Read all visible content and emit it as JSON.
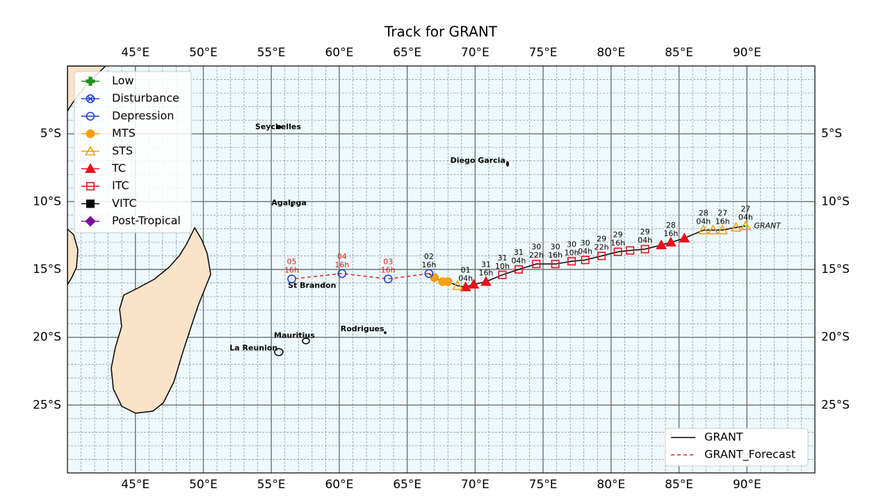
{
  "map": {
    "title": "Track for GRANT",
    "xlim": [
      40,
      95
    ],
    "ylim": [
      -30,
      0
    ],
    "xticks": [
      {
        "value": 45,
        "label": "45°E"
      },
      {
        "value": 50,
        "label": "50°E"
      },
      {
        "value": 55,
        "label": "55°E"
      },
      {
        "value": 60,
        "label": "60°E"
      },
      {
        "value": 65,
        "label": "65°E"
      },
      {
        "value": 70,
        "label": "70°E"
      },
      {
        "value": 75,
        "label": "75°E"
      },
      {
        "value": 80,
        "label": "80°E"
      },
      {
        "value": 85,
        "label": "85°E"
      },
      {
        "value": 90,
        "label": "90°E"
      }
    ],
    "yticks": [
      {
        "value": -5,
        "label": "5°S"
      },
      {
        "value": -10,
        "label": "10°S"
      },
      {
        "value": -15,
        "label": "15°S"
      },
      {
        "value": -20,
        "label": "20°S"
      },
      {
        "value": -25,
        "label": "25°S"
      }
    ],
    "xminor": [
      41,
      42,
      43,
      44,
      46,
      47,
      48,
      49,
      51,
      52,
      53,
      54,
      56,
      57,
      58,
      59,
      61,
      62,
      63,
      64,
      66,
      67,
      68,
      69,
      71,
      72,
      73,
      74,
      76,
      77,
      78,
      79,
      81,
      82,
      83,
      84,
      86,
      87,
      88,
      89,
      91,
      92,
      93,
      94
    ],
    "yminor": [
      -1,
      -2,
      -3,
      -4,
      -6,
      -7,
      -8,
      -9,
      -11,
      -12,
      -13,
      -14,
      -16,
      -17,
      -18,
      -19,
      -21,
      -22,
      -23,
      -24,
      -26,
      -27,
      -28,
      -29
    ],
    "category_legend": [
      {
        "name": "Low",
        "marker": "plus",
        "filled": true,
        "color": "#228b22"
      },
      {
        "name": "Disturbance",
        "marker": "xcircle",
        "filled": false,
        "color": "#1f3fd0"
      },
      {
        "name": "Depression",
        "marker": "circle",
        "filled": false,
        "color": "#1f3fd0"
      },
      {
        "name": "MTS",
        "marker": "circle",
        "filled": true,
        "color": "#f5a00f"
      },
      {
        "name": "STS",
        "marker": "triangle",
        "filled": false,
        "color": "#f5a00f"
      },
      {
        "name": "TC",
        "marker": "triangle",
        "filled": true,
        "color": "#e8101a"
      },
      {
        "name": "ITC",
        "marker": "square",
        "filled": false,
        "color": "#e8101a"
      },
      {
        "name": "VITC",
        "marker": "square",
        "filled": true,
        "color": "#000000"
      },
      {
        "name": "Post-Tropical",
        "marker": "diamond",
        "filled": true,
        "color": "#7d0a9a"
      }
    ],
    "places": [
      {
        "name": "Seychelles",
        "lon": 55.5,
        "lat": -4.5
      },
      {
        "name": "Diego Garcia",
        "lon": 70.2,
        "lat": -7.0
      },
      {
        "name": "Agalega",
        "lon": 56.3,
        "lat": -10.1
      },
      {
        "name": "St Brandon",
        "lon": 58.0,
        "lat": -16.2
      },
      {
        "name": "Mauritius",
        "lon": 56.7,
        "lat": -19.9
      },
      {
        "name": "Rodrigues",
        "lon": 61.7,
        "lat": -19.4
      },
      {
        "name": "La Reunion",
        "lon": 53.7,
        "lat": -20.8
      }
    ],
    "track_name": "GRANT",
    "series": [
      {
        "name": "GRANT",
        "color": "#000000",
        "dashed": false,
        "points": [
          {
            "lon": 89.9,
            "lat": -11.8,
            "cat": 4
          },
          {
            "lon": 89.2,
            "lat": -11.9,
            "cat": 4
          },
          {
            "lon": 88.2,
            "lat": -12.1,
            "cat": 4
          },
          {
            "lon": 87.5,
            "lat": -12.1,
            "cat": 4
          },
          {
            "lon": 86.8,
            "lat": -12.1,
            "cat": 4
          },
          {
            "lon": 85.4,
            "lat": -12.7,
            "cat": 5
          },
          {
            "lon": 84.4,
            "lat": -13.0,
            "cat": 5
          },
          {
            "lon": 83.7,
            "lat": -13.2,
            "cat": 5
          },
          {
            "lon": 82.5,
            "lat": -13.5,
            "cat": 6
          },
          {
            "lon": 81.4,
            "lat": -13.6,
            "cat": 6
          },
          {
            "lon": 80.5,
            "lat": -13.7,
            "cat": 6
          },
          {
            "lon": 79.3,
            "lat": -14.0,
            "cat": 6
          },
          {
            "lon": 78.1,
            "lat": -14.3,
            "cat": 6
          },
          {
            "lon": 77.1,
            "lat": -14.4,
            "cat": 6
          },
          {
            "lon": 75.9,
            "lat": -14.6,
            "cat": 6
          },
          {
            "lon": 74.5,
            "lat": -14.6,
            "cat": 6
          },
          {
            "lon": 73.2,
            "lat": -15.0,
            "cat": 6
          },
          {
            "lon": 72.0,
            "lat": -15.4,
            "cat": 6
          },
          {
            "lon": 70.8,
            "lat": -15.9,
            "cat": 5
          },
          {
            "lon": 69.9,
            "lat": -16.1,
            "cat": 5
          },
          {
            "lon": 69.3,
            "lat": -16.3,
            "cat": 5
          },
          {
            "lon": 68.7,
            "lat": -16.2,
            "cat": 4
          },
          {
            "lon": 68.0,
            "lat": -15.9,
            "cat": 3
          },
          {
            "lon": 67.6,
            "lat": -15.9,
            "cat": 3
          },
          {
            "lon": 67.0,
            "lat": -15.6,
            "cat": 3
          },
          {
            "lon": 66.6,
            "lat": -15.3,
            "cat": 2
          }
        ],
        "labels": [
          {
            "point": 0,
            "day": "27",
            "hour": "04h"
          },
          {
            "point": 2,
            "day": "27",
            "hour": "16h"
          },
          {
            "point": 4,
            "day": "28",
            "hour": "04h"
          },
          {
            "point": 6,
            "day": "28",
            "hour": "16h"
          },
          {
            "point": 8,
            "day": "29",
            "hour": "04h"
          },
          {
            "point": 10,
            "day": "29",
            "hour": "16h"
          },
          {
            "point": 11,
            "day": "29",
            "hour": "22h"
          },
          {
            "point": 12,
            "day": "30",
            "hour": "04h"
          },
          {
            "point": 13,
            "day": "30",
            "hour": "10h"
          },
          {
            "point": 14,
            "day": "30",
            "hour": "16h"
          },
          {
            "point": 15,
            "day": "30",
            "hour": "22h"
          },
          {
            "point": 16,
            "day": "31",
            "hour": "04h"
          },
          {
            "point": 17,
            "day": "31",
            "hour": "10h"
          },
          {
            "point": 18,
            "day": "31",
            "hour": "16h"
          },
          {
            "point": 20,
            "day": "01",
            "hour": "04h"
          },
          {
            "point": 25,
            "day": "02",
            "hour": "16h"
          }
        ]
      },
      {
        "name": "GRANT_Forecast",
        "color": "#e02020",
        "dashed": true,
        "points": [
          {
            "lon": 66.6,
            "lat": -15.3,
            "cat": 2
          },
          {
            "lon": 63.6,
            "lat": -15.7,
            "cat": 2
          },
          {
            "lon": 60.2,
            "lat": -15.3,
            "cat": 2
          },
          {
            "lon": 56.5,
            "lat": -15.7,
            "cat": 2
          }
        ],
        "labels": [
          {
            "point": 1,
            "day": "03",
            "hour": "16h"
          },
          {
            "point": 2,
            "day": "04",
            "hour": "16h"
          },
          {
            "point": 3,
            "day": "05",
            "hour": "16h"
          }
        ]
      }
    ]
  }
}
